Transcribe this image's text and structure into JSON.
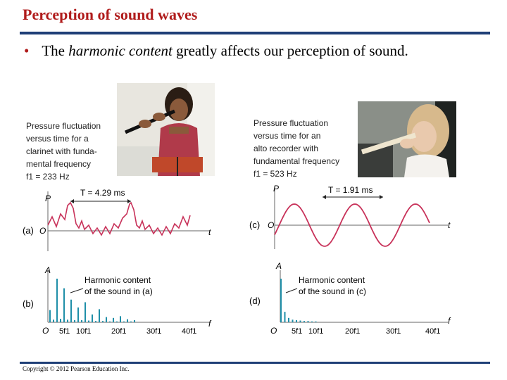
{
  "slide": {
    "title": "Perception of sound waves",
    "bullet": {
      "pre": "The ",
      "em": "harmonic content",
      "post": " greatly affects our perception of sound."
    },
    "copyright": "Copyright © 2012 Pearson Education Inc."
  },
  "left": {
    "caption": [
      "Pressure fluctuation",
      "versus time for a",
      "clarinet with funda-",
      "mental frequency",
      "f1 = 233 Hz"
    ],
    "period_label": "T = 4.29 ms",
    "panel_a": "(a)",
    "panel_b": "(b)",
    "harmonic_label": [
      "Harmonic content",
      "of the sound in (a)"
    ]
  },
  "right": {
    "caption": [
      "Pressure fluctuation",
      "versus time for an",
      "alto recorder with",
      "fundamental frequency",
      "f1 = 523 Hz"
    ],
    "period_label": "T = 1.91 ms",
    "panel_c": "(c)",
    "panel_d": "(d)",
    "harmonic_label": [
      "Harmonic content",
      "of the sound in (c)"
    ]
  },
  "axes": {
    "p": "P",
    "o": "O",
    "t": "t",
    "a": "A",
    "f": "f"
  },
  "freq_ticks": [
    "5f1",
    "10f1",
    "20f1",
    "30f1",
    "40f1"
  ],
  "chart_data": [
    {
      "type": "bar",
      "title": "Harmonic content of the sound in (a)",
      "xlabel": "f",
      "ylabel": "A",
      "x": [
        1,
        2,
        3,
        4,
        5,
        6,
        7,
        8,
        9,
        10,
        11,
        12,
        13,
        14,
        15,
        16,
        17,
        18,
        19,
        20,
        21,
        22,
        23,
        24,
        25
      ],
      "values": [
        0.28,
        0.06,
        1.0,
        0.08,
        0.78,
        0.06,
        0.52,
        0.05,
        0.34,
        0.05,
        0.46,
        0.04,
        0.18,
        0.03,
        0.3,
        0.03,
        0.12,
        0.02,
        0.1,
        0.02,
        0.14,
        0.02,
        0.07,
        0.02,
        0.05
      ]
    },
    {
      "type": "bar",
      "title": "Harmonic content of the sound in (c)",
      "xlabel": "f",
      "ylabel": "A",
      "x": [
        1,
        2,
        3,
        4,
        5,
        6,
        7,
        8,
        9,
        10
      ],
      "values": [
        1.0,
        0.24,
        0.1,
        0.06,
        0.05,
        0.04,
        0.03,
        0.03,
        0.02,
        0.02
      ]
    }
  ]
}
